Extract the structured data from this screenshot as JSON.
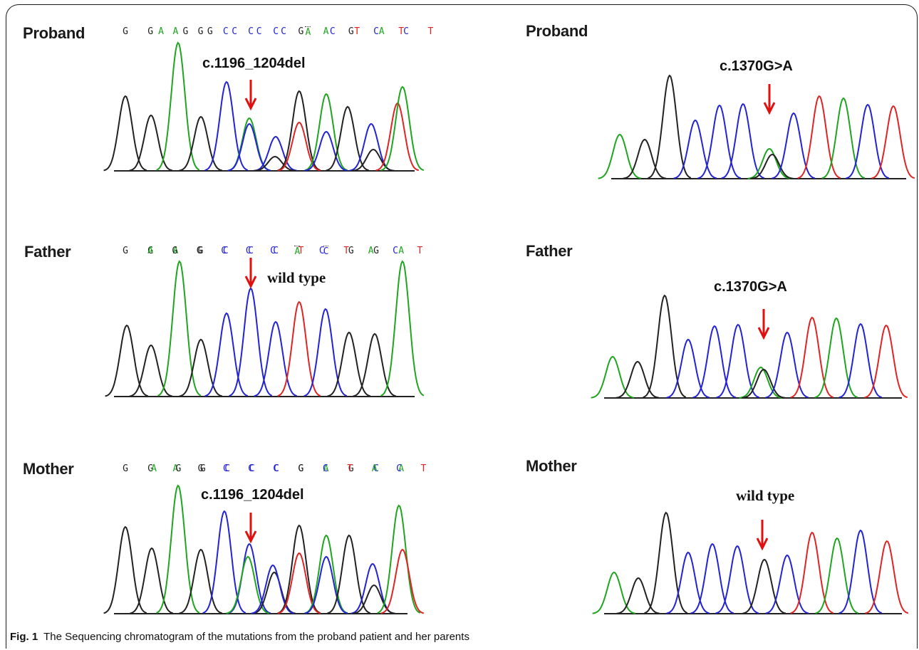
{
  "colors": {
    "A": "#1fa51f",
    "C": "#2323d6",
    "G": "#222222",
    "T": "#e02424",
    "arrow": "#e01010"
  },
  "panels": [
    {
      "id": "proband-left",
      "label": "Proband",
      "sequence": [
        "G",
        "G",
        "A",
        "G",
        "C",
        "C",
        "C",
        "G",
        "A",
        "G",
        "C",
        "T"
      ],
      "dotted_index": -1,
      "annotation": "c.1196_1204del"
    },
    {
      "id": "proband-right",
      "label": "Proband",
      "sequence": [
        "A",
        "G",
        "G",
        "C",
        "C",
        "C",
        "A",
        "C",
        "T",
        "A",
        "C",
        "T"
      ],
      "dotted_index": 6,
      "annotation": "c.1370G>A"
    },
    {
      "id": "father-left",
      "label": "Father",
      "sequence": [
        "G",
        "G",
        "A",
        "G",
        "C",
        "C",
        "C",
        "T",
        "C",
        "G",
        "G",
        "A"
      ],
      "dotted_index": 8,
      "annotation": "wild type"
    },
    {
      "id": "father-right",
      "label": "Father",
      "sequence": [
        "A",
        "G",
        "G",
        "C",
        "C",
        "C",
        "A",
        "C",
        "T",
        "A",
        "C",
        "T"
      ],
      "dotted_index": 6,
      "annotation": "c.1370G>A"
    },
    {
      "id": "mother-left",
      "label": "Mother",
      "sequence": [
        "G",
        "G",
        "A",
        "G",
        "C",
        "C",
        "C",
        "G",
        "A",
        "G",
        "C",
        "A"
      ],
      "dotted_index": -1,
      "annotation": "c.1196_1204del"
    },
    {
      "id": "mother-right",
      "label": "Mother",
      "sequence": [
        "A",
        "G",
        "G",
        "C",
        "C",
        "C",
        "G",
        "C",
        "T",
        "A",
        "C",
        "T"
      ],
      "dotted_index": -1,
      "annotation": "wild type"
    }
  ],
  "caption": {
    "label": "Fig. 1",
    "text": "The Sequencing chromatogram of the mutations from the proband patient and her parents"
  }
}
